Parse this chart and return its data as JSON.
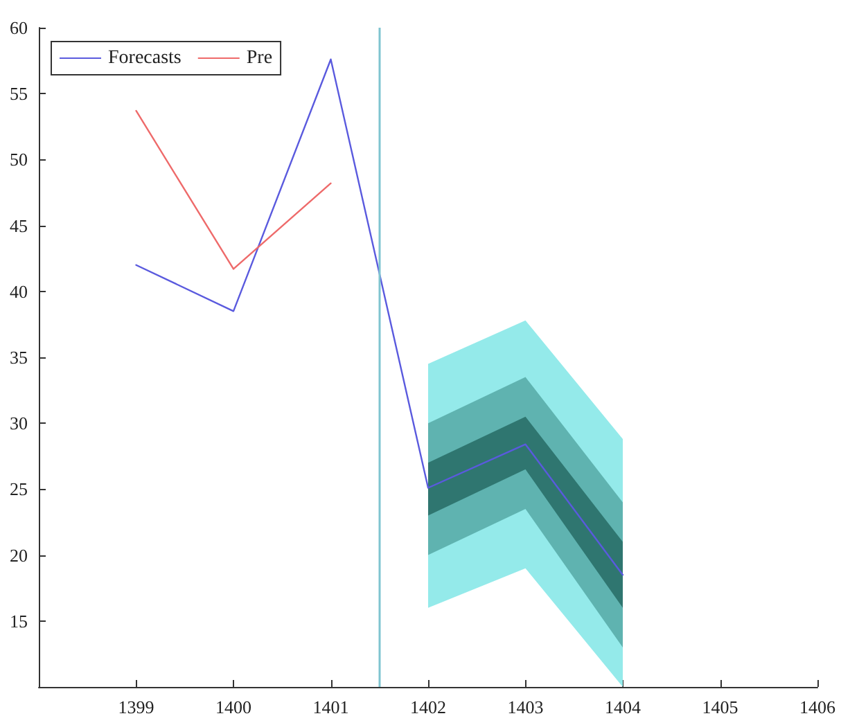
{
  "chart_data": {
    "type": "line",
    "xlim": [
      1398,
      1406
    ],
    "xticks": [
      1399,
      1400,
      1401,
      1402,
      1403,
      1404,
      1405,
      1406
    ],
    "ylim": [
      10,
      60
    ],
    "yticks": [
      15,
      20,
      25,
      30,
      35,
      40,
      45,
      50,
      55,
      60
    ],
    "grid": false,
    "legend": "top left",
    "marker": "none",
    "series": [
      {
        "type": "area",
        "color": "#94eaea",
        "x": [
          1402,
          1403,
          1404
        ],
        "values": [
          null,
          null,
          null
        ],
        "lower": [
          16,
          19,
          10
        ],
        "upper": [
          34.5,
          37.8,
          28.8
        ]
      },
      {
        "type": "area",
        "color": "#5fb3b0",
        "x": [
          1402,
          1403,
          1404
        ],
        "values": [
          null,
          null,
          null
        ],
        "lower": [
          20,
          23.5,
          13
        ],
        "upper": [
          30,
          33.5,
          24
        ]
      },
      {
        "type": "area",
        "color": "#2f7670",
        "x": [
          1402,
          1403,
          1404
        ],
        "values": [
          null,
          null,
          null
        ],
        "lower": [
          23,
          26.5,
          16
        ],
        "upper": [
          27,
          30.5,
          21
        ]
      },
      {
        "name": "Forecasts",
        "color": "#5a5ade",
        "x": [
          1399,
          1400,
          1401,
          1402,
          1403,
          1404
        ],
        "values": [
          42.0,
          38.5,
          57.6,
          25.1,
          28.4,
          18.5
        ]
      },
      {
        "name": "Pre",
        "color": "#ee6a6a",
        "x": [
          1399,
          1400,
          1401
        ],
        "values": [
          53.7,
          41.7,
          48.2
        ]
      }
    ],
    "ref_lines": [
      {
        "axis": "x",
        "value": 1401.5,
        "color": "#7fc4d0",
        "line_style": "solid"
      }
    ]
  }
}
